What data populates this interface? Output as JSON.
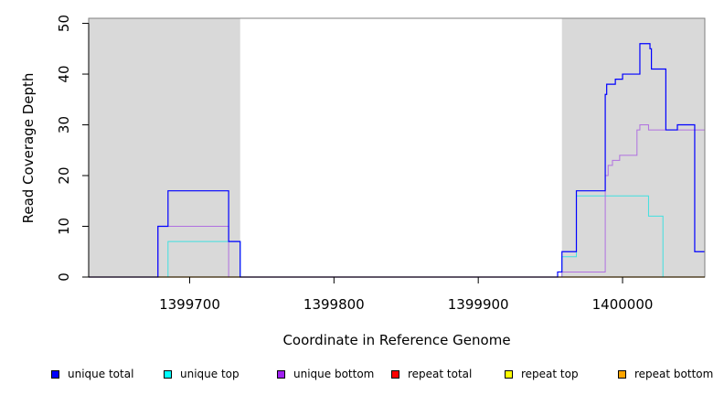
{
  "chart_data": {
    "type": "line",
    "title": "",
    "xlabel": "Coordinate in Reference Genome",
    "ylabel": "Read Coverage Depth",
    "xlim": [
      1399630,
      1400057
    ],
    "ylim": [
      0,
      51
    ],
    "xticks": [
      1399700,
      1399800,
      1399900,
      1400000
    ],
    "xtick_labels": [
      "1399700",
      "1399800",
      "1399900",
      "1400000"
    ],
    "yticks": [
      0,
      10,
      20,
      30,
      40,
      50
    ],
    "ytick_labels": [
      "0",
      "10",
      "20",
      "30",
      "40",
      "50"
    ],
    "shaded_regions": [
      [
        1399630,
        1399735
      ],
      [
        1399958,
        1400057
      ]
    ],
    "shade_color": "#d9d9d9",
    "series": [
      {
        "name": "repeat bottom",
        "color": "#ffa500",
        "width": 1.2,
        "x": [
          1399630,
          1400057
        ],
        "y": [
          0,
          0
        ]
      },
      {
        "name": "unique top",
        "color": "#40e0e0",
        "width": 1,
        "x": [
          1399630,
          1399685,
          1399685,
          1399735,
          1399735,
          1399958,
          1399958,
          1399968,
          1399968,
          1400018,
          1400018,
          1400028,
          1400028,
          1400057
        ],
        "y": [
          0,
          0,
          7,
          7,
          0,
          0,
          4,
          4,
          16,
          16,
          12,
          12,
          0,
          0
        ]
      },
      {
        "name": "unique bottom",
        "color": "#b070e0",
        "width": 1,
        "x": [
          1399630,
          1399678,
          1399678,
          1399727,
          1399727,
          1399958,
          1399958,
          1399988,
          1399988,
          1399990,
          1399990,
          1399993,
          1399993,
          1399998,
          1399998,
          1400000,
          1400000,
          1400010,
          1400010,
          1400012,
          1400012,
          1400018,
          1400018,
          1400057
        ],
        "y": [
          0,
          0,
          10,
          10,
          0,
          0,
          1,
          1,
          20,
          20,
          22,
          22,
          23,
          23,
          24,
          24,
          24,
          24,
          29,
          29,
          30,
          30,
          29,
          29
        ]
      },
      {
        "name": "unique total",
        "color": "#0000ff",
        "width": 1.2,
        "x": [
          1399630,
          1399678,
          1399678,
          1399685,
          1399685,
          1399727,
          1399727,
          1399735,
          1399735,
          1399955,
          1399955,
          1399958,
          1399958,
          1399968,
          1399968,
          1399988,
          1399988,
          1399989,
          1399989,
          1399995,
          1399995,
          1400000,
          1400000,
          1400012,
          1400012,
          1400019,
          1400019,
          1400020,
          1400020,
          1400030,
          1400030,
          1400038,
          1400038,
          1400050,
          1400050,
          1400057
        ],
        "y": [
          0,
          0,
          10,
          10,
          17,
          17,
          7,
          7,
          0,
          0,
          1,
          1,
          5,
          5,
          17,
          17,
          36,
          36,
          38,
          38,
          39,
          39,
          40,
          40,
          46,
          46,
          45,
          45,
          41,
          41,
          29,
          29,
          30,
          30,
          5,
          5
        ]
      }
    ],
    "legend_position": "bottom",
    "legend": [
      {
        "label": "unique total",
        "color": "#0000ff"
      },
      {
        "label": "unique top",
        "color": "#00ffff"
      },
      {
        "label": "unique bottom",
        "color": "#a020f0"
      },
      {
        "label": "repeat total",
        "color": "#ff0000"
      },
      {
        "label": "repeat top",
        "color": "#ffff00"
      },
      {
        "label": "repeat bottom",
        "color": "#ffa500"
      }
    ]
  }
}
